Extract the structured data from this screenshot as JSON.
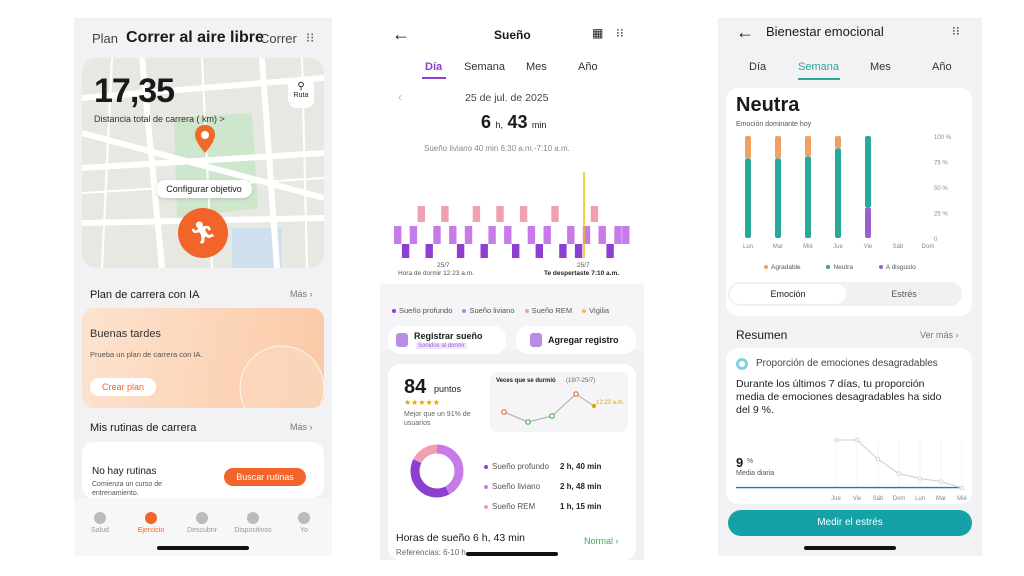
{
  "phone1": {
    "header": {
      "left": "Plan",
      "title": "Correr al aire libre",
      "right": "Correr"
    },
    "map": {
      "distance": "17,35",
      "distance_label": "Distancia total de carrera ( km) >",
      "route_label": "Ruta",
      "goal_button": "Configurar objetivo"
    },
    "ai_plan": {
      "title": "Plan de carrera con IA",
      "more": "Más",
      "card_title": "Buenas tardes",
      "card_text": "Prueba un plan de carrera con IA.",
      "card_button": "Crear plan"
    },
    "routines": {
      "title": "Mis rutinas de carrera",
      "more": "Más",
      "empty_title": "No hay rutinas",
      "empty_text": "Comienza un curso de entrenamiento.",
      "button": "Buscar rutinas"
    },
    "nav": [
      "Salud",
      "Ejercicio",
      "Descubrir",
      "Dispositivos",
      "Yo"
    ]
  },
  "phone2": {
    "header": {
      "title": "Sueño"
    },
    "tabs": [
      "Día",
      "Semana",
      "Mes",
      "Año"
    ],
    "date": "25 de jul. de 2025",
    "total": {
      "h": "6",
      "h_unit": "h,",
      "m": "43",
      "m_unit": "min"
    },
    "summary": "Sueño liviano 40 min 6:30 a.m.-7:10 a.m.",
    "chart_labels": {
      "start_date": "25/7",
      "start": "Hora de dormir 12:23 a.m.",
      "end_date": "25/7",
      "end": "Te despertaste 7:10 a.m."
    },
    "legend": [
      "Sueño profundo",
      "Sueño liviano",
      "Sueño REM",
      "Vigilia"
    ],
    "buttons": {
      "register": "Registrar sueño",
      "register_sub": "Sonidos al dormir",
      "add": "Agregar registro"
    },
    "score": {
      "value": "84",
      "unit": "puntos",
      "stars": "★★★★★",
      "better": "Mejor que un 91% de usuarios"
    },
    "trend": {
      "title": "Veces que se durmió",
      "range": "(19/7-25/7)",
      "last": "12:23 a.m."
    },
    "stages": [
      {
        "label": "Sueño profundo",
        "value": "2 h, 40 min",
        "color": "#8c3fd1"
      },
      {
        "label": "Sueño liviano",
        "value": "2 h, 48 min",
        "color": "#c77be8"
      },
      {
        "label": "Sueño REM",
        "value": "1 h, 15 min",
        "color": "#f0a0b0"
      }
    ],
    "hours": {
      "title": "Horas de sueño 6 h, 43 min",
      "ref": "Referencias: 6-10 h",
      "status": "Normal"
    }
  },
  "phone3": {
    "header": {
      "title": "Bienestar emocional"
    },
    "tabs": [
      "Día",
      "Semana",
      "Mes",
      "Año"
    ],
    "mood": "Neutra",
    "mood_sub": "Emoción dominante hoy",
    "chart_legend": [
      "Agradable",
      "Neutra",
      "A disgusto"
    ],
    "segments": [
      "Emoción",
      "Estrés"
    ],
    "summary": {
      "title": "Resumen",
      "more": "Ver más",
      "card_title": "Proporción de emociones desagradables",
      "text": "Durante los últimos 7 días, tu proporción media de emociones desagradables ha sido del 9 %.",
      "value": "9",
      "unit": "%",
      "avg_label": "Media diaria"
    },
    "button": "Medir el estrés"
  },
  "chart_data": [
    {
      "type": "bar",
      "categories": [
        "Lun",
        "Mar",
        "Mié",
        "Jue",
        "Vie",
        "Sáb",
        "Dom"
      ],
      "series": [
        {
          "name": "Agradable",
          "values": [
            22,
            22,
            20,
            12,
            0,
            0,
            0
          ]
        },
        {
          "name": "Neutra",
          "values": [
            78,
            78,
            80,
            88,
            70,
            0,
            0
          ]
        },
        {
          "name": "A disgusto",
          "values": [
            0,
            0,
            0,
            0,
            30,
            0,
            0
          ]
        }
      ],
      "yticks": [
        "100 %",
        "75 %",
        "50 %",
        "25 %",
        "0"
      ],
      "ylim": [
        0,
        100
      ],
      "stacked": true,
      "colors": [
        "#f0a060",
        "#2aa89a",
        "#9a5fd0"
      ]
    },
    {
      "type": "line",
      "categories": [
        "Jue",
        "Vie",
        "Sáb",
        "Dom",
        "Lun",
        "Mar",
        "Mié"
      ],
      "values": [
        30,
        30,
        18,
        9,
        6,
        4,
        0
      ],
      "ylim": [
        0,
        30
      ]
    }
  ]
}
